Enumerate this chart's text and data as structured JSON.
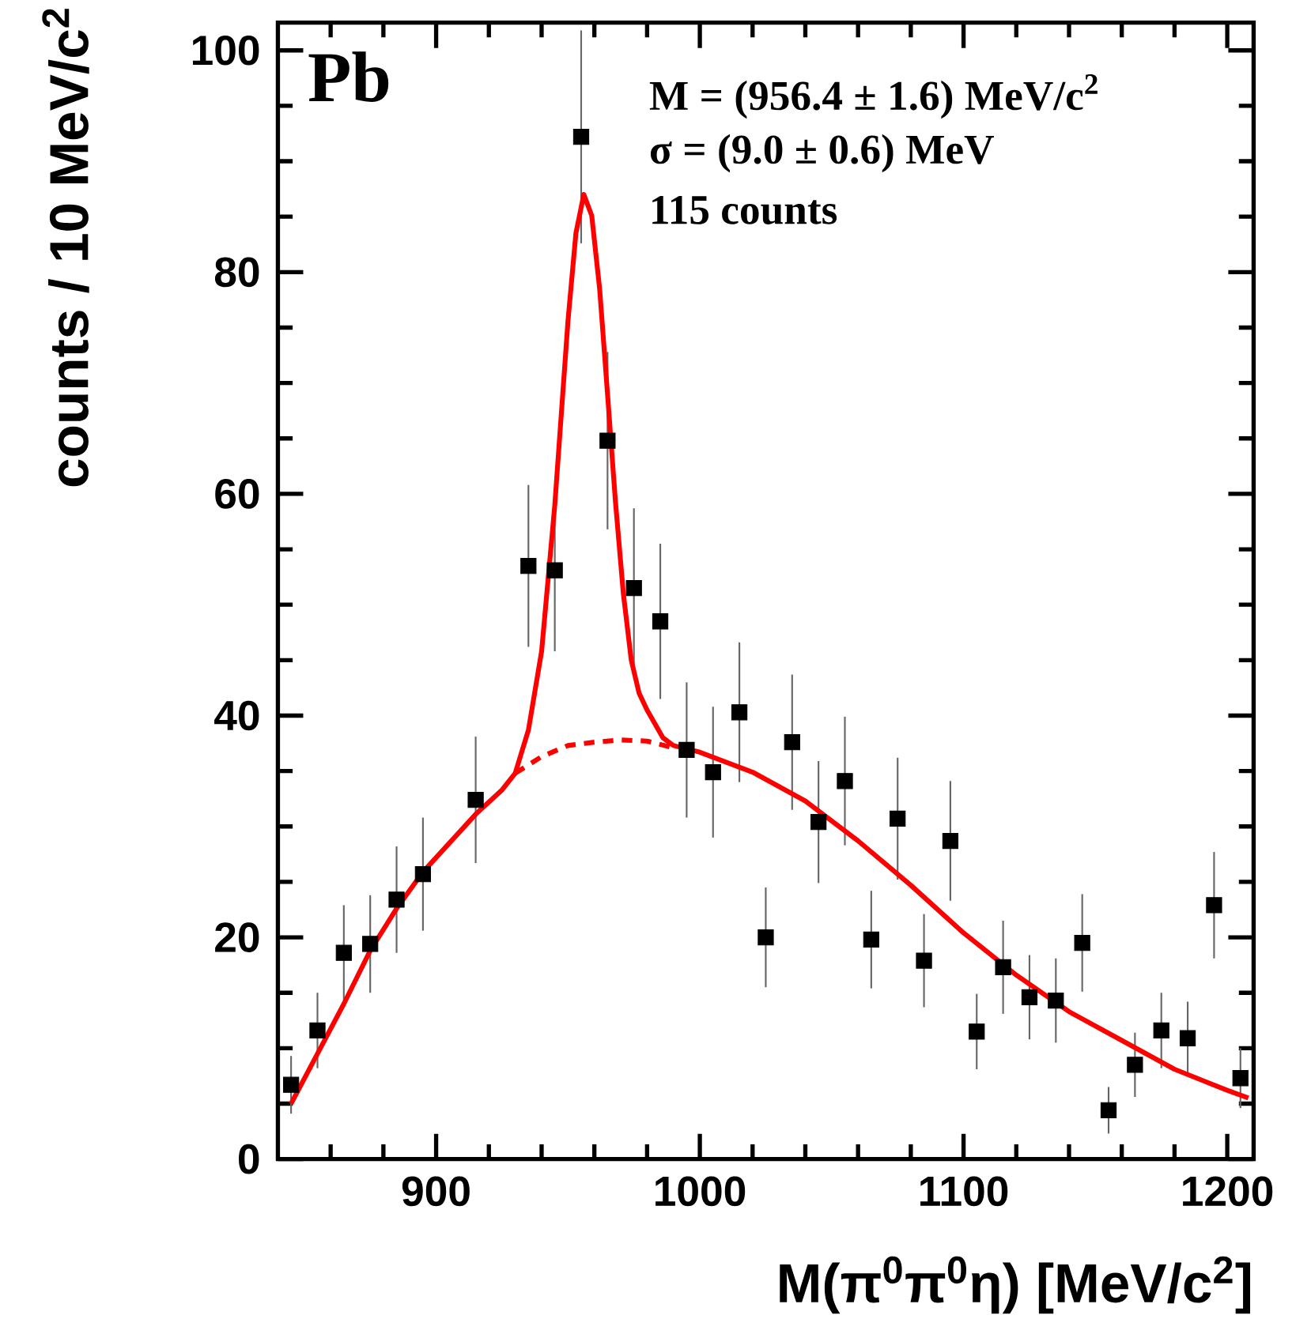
{
  "chart_data": {
    "type": "scatter",
    "xlabel": "M(π$^{0}$π$^{0}$η) [MeV/c$^{2}$]",
    "ylabel": "counts / 10 MeV/c$^{2}$",
    "annotations": [
      "Pb",
      "M = (956.4 ± 1.6) MeV/c$^{2}$",
      "σ = (9.0 ± 0.6) MeV",
      "115 counts"
    ],
    "xlim": [
      840,
      1210
    ],
    "ylim": [
      0,
      102.5
    ],
    "xticks": [
      {
        "value": 860,
        "label": null
      },
      {
        "value": 880,
        "label": null
      },
      900,
      {
        "value": 920,
        "label": null
      },
      {
        "value": 940,
        "label": null
      },
      {
        "value": 960,
        "label": null
      },
      {
        "value": 980,
        "label": null
      },
      1000,
      {
        "value": 1020,
        "label": null
      },
      {
        "value": 1040,
        "label": null
      },
      {
        "value": 1060,
        "label": null
      },
      {
        "value": 1080,
        "label": null
      },
      1100,
      {
        "value": 1120,
        "label": null
      },
      {
        "value": 1140,
        "label": null
      },
      {
        "value": 1160,
        "label": null
      },
      {
        "value": 1180,
        "label": null
      },
      1200
    ],
    "yticks": [
      0,
      {
        "value": 5,
        "label": null
      },
      {
        "value": 10,
        "label": null
      },
      {
        "value": 15,
        "label": null
      },
      20,
      {
        "value": 25,
        "label": null
      },
      {
        "value": 30,
        "label": null
      },
      {
        "value": 35,
        "label": null
      },
      40,
      {
        "value": 45,
        "label": null
      },
      {
        "value": 50,
        "label": null
      },
      {
        "value": 55,
        "label": null
      },
      60,
      {
        "value": 65,
        "label": null
      },
      {
        "value": 70,
        "label": null
      },
      {
        "value": 75,
        "label": null
      },
      80,
      {
        "value": 85,
        "label": null
      },
      {
        "value": 90,
        "label": null
      },
      {
        "value": 95,
        "label": null
      },
      100
    ],
    "series": [
      {
        "type": "scatter",
        "color": "#000000",
        "marker": "square",
        "x": [
          845,
          855,
          865,
          875,
          885,
          895,
          915,
          935,
          945,
          955,
          965,
          975,
          985,
          995,
          1005,
          1015,
          1025,
          1035,
          1045,
          1055,
          1065,
          1075,
          1085,
          1095,
          1105,
          1115,
          1125,
          1135,
          1145,
          1155,
          1165,
          1175,
          1185,
          1195,
          1205
        ],
        "values": [
          6.7,
          11.6,
          18.6,
          19.4,
          23.4,
          25.7,
          32.4,
          53.5,
          53.1,
          92.2,
          64.8,
          51.5,
          48.5,
          36.9,
          34.9,
          40.3,
          20.0,
          37.6,
          30.4,
          34.1,
          19.8,
          30.7,
          17.9,
          28.7,
          11.5,
          17.3,
          14.6,
          14.3,
          19.5,
          4.4,
          8.5,
          11.6,
          10.9,
          22.9,
          7.3
        ],
        "errors": [
          2.6,
          3.4,
          4.3,
          4.4,
          4.8,
          5.1,
          5.7,
          7.3,
          7.3,
          9.6,
          8.0,
          7.2,
          7.0,
          6.1,
          5.9,
          6.3,
          4.5,
          6.1,
          5.5,
          5.8,
          4.4,
          5.5,
          4.2,
          5.4,
          3.4,
          4.2,
          3.8,
          3.8,
          4.4,
          2.1,
          2.9,
          3.4,
          3.3,
          4.8,
          2.7
        ]
      },
      {
        "type": "line",
        "color": "#ff0000",
        "line_style": "solid",
        "x": [
          845,
          855,
          865,
          875,
          885,
          895,
          905,
          915,
          925,
          930,
          935,
          940,
          945,
          950,
          953,
          956,
          959,
          962,
          965,
          968,
          971,
          974,
          977,
          980,
          986,
          990,
          1000,
          1020,
          1040,
          1060,
          1080,
          1100,
          1120,
          1140,
          1160,
          1180,
          1200,
          1208
        ],
        "values": [
          5.0,
          9.5,
          14.0,
          18.8,
          22.6,
          25.9,
          28.5,
          31.1,
          33.3,
          34.8,
          38.7,
          45.8,
          59.0,
          75.6,
          83.5,
          87.0,
          85.1,
          78.5,
          69.0,
          59.3,
          51.0,
          45.0,
          42.0,
          40.5,
          38.0,
          37.3,
          36.7,
          34.9,
          32.3,
          28.7,
          24.7,
          20.4,
          16.6,
          13.3,
          10.7,
          8.1,
          6.2,
          5.5
        ]
      },
      {
        "type": "line",
        "color": "#ff0000",
        "line_style": "dashed",
        "x": [
          930,
          940,
          950,
          960,
          970,
          980,
          990
        ],
        "values": [
          34.8,
          36.3,
          37.3,
          37.6,
          37.8,
          37.7,
          37.1
        ]
      }
    ]
  }
}
